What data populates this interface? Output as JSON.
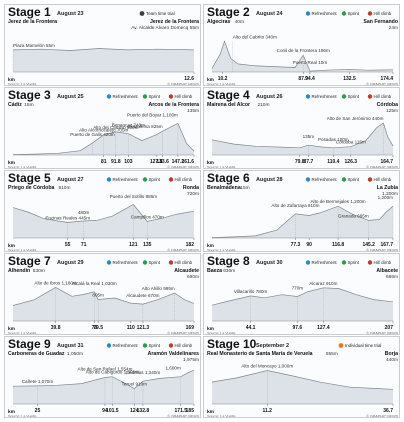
{
  "watermark": "GRAPHIC NEWS",
  "legend": {
    "refreshment": "Refreshment",
    "sprint": "Sprint",
    "hill_climb": "Hill climb",
    "team_time_trial": "Team time trial",
    "individual_time_trial": "Individual time trial"
  },
  "colors": {
    "profile_fill": "#dce2e7",
    "profile_line": "#7b8790",
    "title_bg": "#ffffff",
    "sprint": "#2e9b4a",
    "hill": "#c0392b",
    "refresh": "#2a88c6",
    "ttt": "#3e3e3e",
    "itt": "#e07b22"
  },
  "source": "Source: La Vuelta",
  "copyright": "© GRAPHIC NEWS",
  "km_label": "km",
  "chart_data": [
    {
      "type": "area",
      "stage": "Stage 1",
      "date": "August 23",
      "start": "Jerez de la Frontera",
      "finish": "Jerez de la Frontera",
      "finish_sub": "Av. Alcalde Alvaro Domecq 55m",
      "legend_type": "ttt",
      "labels": [
        {
          "text": "Plaza Mamelón 55m",
          "km": 0,
          "alt": 55
        }
      ],
      "km_ticks": [
        {
          "t": "12.6",
          "km": 12.6
        }
      ],
      "total_km": 12.6,
      "profile": [
        [
          0,
          55
        ],
        [
          2,
          56
        ],
        [
          4,
          54
        ],
        [
          6,
          57
        ],
        [
          8,
          55
        ],
        [
          10,
          56
        ],
        [
          12.6,
          55
        ]
      ]
    },
    {
      "type": "area",
      "stage": "Stage 2",
      "date": "August 24",
      "start": "Algeciras",
      "start_sub": "40m",
      "finish": "San Fernando",
      "finish_sub": "24m",
      "legend_type": "normal",
      "labels": [
        {
          "text": "Alto del Cabrito 340m",
          "km": 20,
          "alt": 340
        },
        {
          "text": "Puerto Real 10m",
          "km": 94.4,
          "alt": 10
        },
        {
          "text": "Conil de la Frontera 186m",
          "km": 87.9,
          "alt": 186
        }
      ],
      "km_ticks": [
        {
          "t": "10.2",
          "km": 10.2
        },
        {
          "t": "87.9",
          "km": 87.9
        },
        {
          "t": "94.4",
          "km": 94.4
        },
        {
          "t": "132.5",
          "km": 132.5
        },
        {
          "t": "174.4",
          "km": 174.4
        }
      ],
      "total_km": 174.4,
      "profile": [
        [
          0,
          40
        ],
        [
          8,
          200
        ],
        [
          12,
          340
        ],
        [
          18,
          150
        ],
        [
          25,
          90
        ],
        [
          40,
          70
        ],
        [
          60,
          60
        ],
        [
          80,
          50
        ],
        [
          87.9,
          186
        ],
        [
          94.4,
          10
        ],
        [
          110,
          20
        ],
        [
          132.5,
          30
        ],
        [
          150,
          20
        ],
        [
          174.4,
          24
        ]
      ]
    },
    {
      "type": "area",
      "stage": "Stage 3",
      "date": "August 25",
      "start": "Cádiz",
      "start_sub": "15m",
      "finish": "Arcos de la Frontera",
      "finish_sub": "135m",
      "legend_type": "normal",
      "labels": [
        {
          "text": "Alto del Camino 800m",
          "km": 91.8,
          "alt": 800
        },
        {
          "text": "Benaocaz 740m",
          "km": 103,
          "alt": 740
        },
        {
          "text": "Alto Alcornocalejo 705m",
          "km": 81,
          "alt": 705
        },
        {
          "text": "Puerto de Galis 420m",
          "km": 71,
          "alt": 420
        },
        {
          "text": "Grazalema 825m",
          "km": 133.6,
          "alt": 825
        },
        {
          "text": "Puerto del Boyar 1,100m",
          "km": 147.2,
          "alt": 1100
        }
      ],
      "km_ticks": [
        {
          "t": "81",
          "km": 81
        },
        {
          "t": "91.8",
          "km": 91.8
        },
        {
          "t": "103",
          "km": 103
        },
        {
          "t": "127.8",
          "km": 127.8
        },
        {
          "t": "147.2",
          "km": 147.2
        },
        {
          "t": "161.6",
          "km": 161.6
        },
        {
          "t": "133.6",
          "km": 133.6
        }
      ],
      "total_km": 161.6,
      "profile": [
        [
          0,
          15
        ],
        [
          20,
          30
        ],
        [
          40,
          60
        ],
        [
          60,
          150
        ],
        [
          71,
          420
        ],
        [
          81,
          705
        ],
        [
          91.8,
          800
        ],
        [
          103,
          740
        ],
        [
          115,
          500
        ],
        [
          127.8,
          700
        ],
        [
          133.6,
          825
        ],
        [
          147.2,
          1100
        ],
        [
          155,
          400
        ],
        [
          161.6,
          135
        ]
      ]
    },
    {
      "type": "area",
      "stage": "Stage 4",
      "date": "August 26",
      "start": "Mairena del Alcor",
      "start_sub": "210m",
      "finish": "Córdoba",
      "finish_sub": "125m",
      "legend_type": "normal",
      "labels": [
        {
          "text": "Alto de San Jerónimo 440m",
          "km": 156,
          "alt": 440
        },
        {
          "text": "Posadas 100m",
          "km": 110.4,
          "alt": 100
        },
        {
          "text": "Córdoba 115m",
          "km": 126.3,
          "alt": 115
        },
        {
          "text": "135m",
          "km": 87.7,
          "alt": 135
        }
      ],
      "km_ticks": [
        {
          "t": "79.8",
          "km": 79.8
        },
        {
          "t": "87.7",
          "km": 87.7
        },
        {
          "t": "110.4",
          "km": 110.4
        },
        {
          "t": "126.3",
          "km": 126.3
        },
        {
          "t": "164.7",
          "km": 164.7
        }
      ],
      "total_km": 164.7,
      "profile": [
        [
          0,
          210
        ],
        [
          20,
          150
        ],
        [
          40,
          120
        ],
        [
          60,
          110
        ],
        [
          79.8,
          100
        ],
        [
          87.7,
          135
        ],
        [
          100,
          110
        ],
        [
          110.4,
          100
        ],
        [
          126.3,
          115
        ],
        [
          140,
          200
        ],
        [
          150,
          380
        ],
        [
          156,
          440
        ],
        [
          160,
          250
        ],
        [
          164.7,
          125
        ]
      ]
    },
    {
      "type": "area",
      "stage": "Stage 5",
      "date": "August 27",
      "start": "Priego de Córdoba",
      "start_sub": "810m",
      "finish": "Ronda",
      "finish_sub": "720m",
      "legend_type": "normal",
      "labels": [
        {
          "text": "Encinas Reales 445m",
          "km": 55,
          "alt": 445
        },
        {
          "text": "Puerto del Sotillo 885m",
          "km": 121,
          "alt": 885
        },
        {
          "text": "Campillos 470m",
          "km": 135,
          "alt": 470
        },
        {
          "text": "480m",
          "km": 71,
          "alt": 480
        }
      ],
      "km_ticks": [
        {
          "t": "55",
          "km": 55
        },
        {
          "t": "71",
          "km": 71
        },
        {
          "t": "121",
          "km": 121
        },
        {
          "t": "135",
          "km": 135
        },
        {
          "t": "182",
          "km": 182
        }
      ],
      "total_km": 182,
      "profile": [
        [
          0,
          810
        ],
        [
          15,
          700
        ],
        [
          30,
          550
        ],
        [
          45,
          480
        ],
        [
          55,
          445
        ],
        [
          71,
          480
        ],
        [
          85,
          500
        ],
        [
          100,
          600
        ],
        [
          121,
          885
        ],
        [
          135,
          470
        ],
        [
          150,
          550
        ],
        [
          165,
          650
        ],
        [
          182,
          720
        ]
      ]
    },
    {
      "type": "area",
      "stage": "Stage 6",
      "date": "August 28",
      "start": "Benalmádena",
      "start_sub": "15m",
      "finish": "La Zubia",
      "finish_sub": "1,200m",
      "legend_type": "normal",
      "labels": [
        {
          "text": "Alto de Bermejales 1,200m",
          "km": 116.8,
          "alt": 1200
        },
        {
          "text": "Alto de Zafarraya 910m",
          "km": 77.3,
          "alt": 910
        },
        {
          "text": "Granada 665m",
          "km": 145.2,
          "alt": 665
        },
        {
          "text": "1,200m",
          "km": 167.7,
          "alt": 1200
        }
      ],
      "km_ticks": [
        {
          "t": "77.3",
          "km": 77.3
        },
        {
          "t": "90",
          "km": 90
        },
        {
          "t": "116.8",
          "km": 116.8
        },
        {
          "t": "145.2",
          "km": 145.2
        },
        {
          "t": "167.7",
          "km": 167.7
        }
      ],
      "total_km": 167.7,
      "profile": [
        [
          0,
          15
        ],
        [
          20,
          40
        ],
        [
          40,
          80
        ],
        [
          60,
          300
        ],
        [
          77.3,
          910
        ],
        [
          90,
          850
        ],
        [
          100,
          950
        ],
        [
          116.8,
          1200
        ],
        [
          130,
          900
        ],
        [
          145.2,
          665
        ],
        [
          155,
          700
        ],
        [
          162,
          1000
        ],
        [
          167.7,
          1200
        ]
      ]
    },
    {
      "type": "area",
      "stage": "Stage 7",
      "date": "August 29",
      "start": "Alhendín",
      "start_sub": "630m",
      "finish": "Alcaudete",
      "finish_sub": "690m",
      "legend_type": "normal",
      "labels": [
        {
          "text": "Alto de Ibros 1,160m",
          "km": 39.8,
          "alt": 1160
        },
        {
          "text": "Alcalá la Real 1,030m",
          "km": 76,
          "alt": 1030
        },
        {
          "text": "805m",
          "km": 79.5,
          "alt": 805
        },
        {
          "text": "Alcaudete 670m",
          "km": 121.3,
          "alt": 670
        },
        {
          "text": "Alto Ahillo 995m",
          "km": 151,
          "alt": 995
        }
      ],
      "km_ticks": [
        {
          "t": "39.8",
          "km": 39.8
        },
        {
          "t": "76",
          "km": 76
        },
        {
          "t": "79.5",
          "km": 79.5
        },
        {
          "t": "110",
          "km": 110
        },
        {
          "t": "121.3",
          "km": 121.3
        },
        {
          "t": "169",
          "km": 169
        }
      ],
      "total_km": 169,
      "profile": [
        [
          0,
          630
        ],
        [
          20,
          800
        ],
        [
          39.8,
          1160
        ],
        [
          55,
          900
        ],
        [
          65,
          950
        ],
        [
          76,
          1030
        ],
        [
          79.5,
          805
        ],
        [
          95,
          850
        ],
        [
          110,
          700
        ],
        [
          121.3,
          670
        ],
        [
          135,
          800
        ],
        [
          151,
          995
        ],
        [
          160,
          800
        ],
        [
          169,
          690
        ]
      ]
    },
    {
      "type": "area",
      "stage": "Stage 8",
      "date": "August 30",
      "start": "Baeza",
      "start_sub": "630m",
      "finish": "Albacete",
      "finish_sub": "686m",
      "legend_type": "normal",
      "labels": [
        {
          "text": "Villacarillo 780m",
          "km": 44.1,
          "alt": 780
        },
        {
          "text": "770m",
          "km": 97.6,
          "alt": 770
        },
        {
          "text": "Alcaraz 910m",
          "km": 127.4,
          "alt": 910
        }
      ],
      "km_ticks": [
        {
          "t": "44.1",
          "km": 44.1
        },
        {
          "t": "97.6",
          "km": 97.6
        },
        {
          "t": "127.4",
          "km": 127.4
        },
        {
          "t": "207",
          "km": 207
        }
      ],
      "total_km": 207,
      "profile": [
        [
          0,
          630
        ],
        [
          20,
          700
        ],
        [
          44.1,
          780
        ],
        [
          60,
          750
        ],
        [
          80,
          800
        ],
        [
          97.6,
          770
        ],
        [
          110,
          850
        ],
        [
          127.4,
          910
        ],
        [
          145,
          900
        ],
        [
          165,
          800
        ],
        [
          185,
          720
        ],
        [
          207,
          686
        ]
      ]
    },
    {
      "type": "area",
      "stage": "Stage 9",
      "date": "August 31",
      "start": "Carboneras de Guadaz",
      "start_sub": "1,050m",
      "finish": "Aramón Valdelinares",
      "finish_sub": "1,975m",
      "legend_type": "normal",
      "labels": [
        {
          "text": "Cañete 1,070m",
          "km": 25,
          "alt": 1070
        },
        {
          "text": "Alto de San Rafael 1,554m",
          "km": 94,
          "alt": 1554
        },
        {
          "text": "Alto de Cabigordo 1,600m",
          "km": 101.5,
          "alt": 1600
        },
        {
          "text": "Cedrillas 1,340m",
          "km": 132.8,
          "alt": 1340
        },
        {
          "text": "Teruel 910m",
          "km": 124,
          "alt": 910
        },
        {
          "text": "1,600m",
          "km": 171.5,
          "alt": 1600
        }
      ],
      "km_ticks": [
        {
          "t": "25",
          "km": 25
        },
        {
          "t": "94",
          "km": 94
        },
        {
          "t": "101.5",
          "km": 101.5
        },
        {
          "t": "124",
          "km": 124
        },
        {
          "t": "132.8",
          "km": 132.8
        },
        {
          "t": "171.5",
          "km": 171.5
        },
        {
          "t": "185",
          "km": 185
        }
      ],
      "total_km": 185,
      "profile": [
        [
          0,
          1050
        ],
        [
          25,
          1070
        ],
        [
          45,
          1100
        ],
        [
          70,
          1200
        ],
        [
          94,
          1554
        ],
        [
          101.5,
          1600
        ],
        [
          115,
          1200
        ],
        [
          124,
          910
        ],
        [
          132.8,
          1340
        ],
        [
          150,
          1500
        ],
        [
          171.5,
          1600
        ],
        [
          178,
          1800
        ],
        [
          185,
          1975
        ]
      ]
    },
    {
      "type": "area",
      "stage": "Stage 10",
      "date": "September 2",
      "start": "Real Monasterio de Santa María de Veruela",
      "start_sub": "655m",
      "finish": "Borja",
      "finish_sub": "440m",
      "legend_type": "itt",
      "labels": [
        {
          "text": "Alto del Moncayo 1,000m",
          "km": 11.2,
          "alt": 1000
        }
      ],
      "km_ticks": [
        {
          "t": "11.2",
          "km": 11.2
        },
        {
          "t": "36.7",
          "km": 36.7
        }
      ],
      "total_km": 36.7,
      "profile": [
        [
          0,
          655
        ],
        [
          5,
          780
        ],
        [
          11.2,
          1000
        ],
        [
          16,
          850
        ],
        [
          22,
          650
        ],
        [
          28,
          500
        ],
        [
          36.7,
          440
        ]
      ]
    }
  ]
}
